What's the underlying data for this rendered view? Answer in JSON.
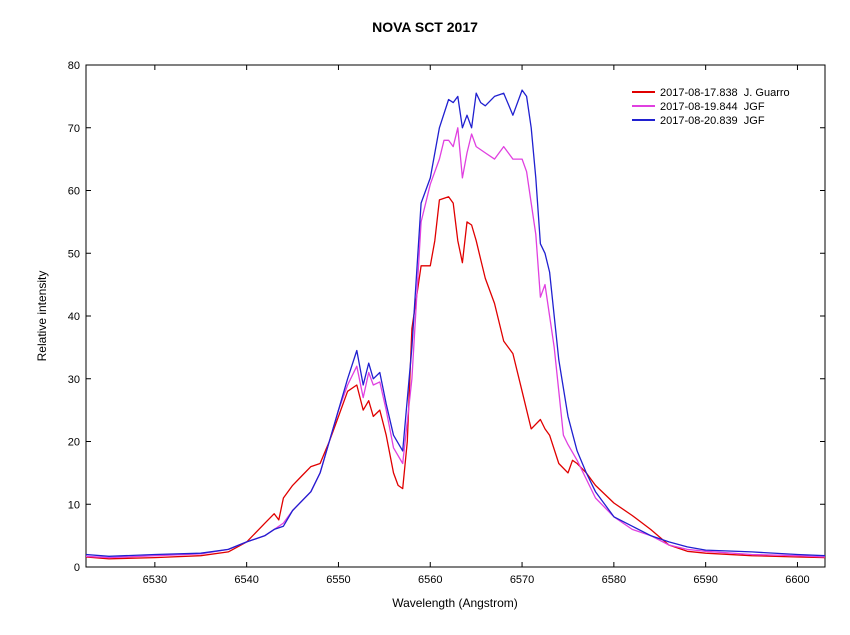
{
  "chart_data": {
    "type": "line",
    "title": "NOVA SCT 2017",
    "xlabel": "Wavelength (Angstrom)",
    "ylabel": "Relative intensity",
    "xlim": [
      6522.5,
      6603
    ],
    "ylim": [
      0,
      80
    ],
    "x_ticks": [
      6530,
      6540,
      6550,
      6560,
      6570,
      6580,
      6590,
      6600
    ],
    "y_ticks": [
      0,
      10,
      20,
      30,
      40,
      50,
      60,
      70,
      80
    ],
    "grid": false,
    "legend_position": "top-right",
    "series": [
      {
        "name": "2017-08-17.838  J. Guarro",
        "color": "#e00000",
        "x": [
          6522.5,
          6525,
          6530,
          6535,
          6538,
          6540,
          6542,
          6543,
          6543.5,
          6544,
          6545,
          6546,
          6547,
          6548,
          6549,
          6550,
          6551,
          6552,
          6552.7,
          6553.3,
          6553.8,
          6554.5,
          6555.2,
          6556,
          6556.5,
          6557,
          6557.5,
          6558,
          6559,
          6560,
          6560.5,
          6561,
          6562,
          6562.5,
          6563,
          6563.5,
          6564,
          6564.5,
          6565,
          6565.5,
          6566,
          6567,
          6568,
          6569,
          6570,
          6571,
          6572,
          6572.5,
          6573,
          6574,
          6575,
          6575.5,
          6576,
          6577,
          6578,
          6580,
          6582,
          6584,
          6586,
          6588,
          6590,
          6595,
          6600,
          6603
        ],
        "y": [
          1.6,
          1.3,
          1.5,
          1.8,
          2.4,
          4,
          7,
          8.5,
          7.5,
          11,
          13,
          14.5,
          16,
          16.5,
          20,
          24,
          28,
          29,
          25,
          26.5,
          24,
          25,
          21,
          15,
          13,
          12.5,
          20,
          38,
          48,
          48,
          52,
          58.5,
          59,
          58,
          52,
          48.5,
          55,
          54.5,
          52,
          49,
          46,
          42,
          36,
          34,
          28,
          22,
          23.5,
          22,
          21,
          16.5,
          15,
          17,
          16.5,
          15,
          13,
          10.2,
          8.2,
          6,
          3.5,
          2.5,
          2.2,
          1.8,
          1.6,
          1.5
        ]
      },
      {
        "name": "2017-08-19.844  JGF",
        "color": "#e040e0",
        "x": [
          6522.5,
          6525,
          6530,
          6535,
          6538,
          6540,
          6542,
          6543,
          6544,
          6545,
          6547,
          6548,
          6549,
          6550,
          6551,
          6552,
          6552.7,
          6553.3,
          6553.8,
          6554.5,
          6555.2,
          6556,
          6557,
          6558,
          6559,
          6560,
          6561,
          6561.5,
          6562,
          6562.5,
          6563,
          6563.5,
          6564,
          6564.5,
          6565,
          6566,
          6567,
          6568,
          6569,
          6570,
          6570.5,
          6571,
          6571.5,
          6572,
          6572.5,
          6573,
          6573.5,
          6574,
          6574.5,
          6575,
          6576,
          6577,
          6578,
          6580,
          6582,
          6584,
          6586,
          6588,
          6590,
          6595,
          6600,
          6603
        ],
        "y": [
          1.7,
          1.5,
          1.8,
          2.1,
          2.8,
          4,
          5,
          6,
          7,
          9,
          12,
          15,
          20,
          25,
          29,
          32,
          27,
          31,
          29,
          29.5,
          25,
          19,
          16.5,
          30,
          55,
          61,
          65,
          68,
          68,
          67,
          70,
          62,
          66,
          69,
          67,
          66,
          65,
          67,
          65,
          65,
          63,
          58,
          53,
          43,
          45,
          40,
          35,
          28,
          21,
          19.5,
          17,
          14,
          11,
          8,
          6,
          5,
          3.5,
          2.8,
          2.5,
          2,
          1.8,
          1.6
        ]
      },
      {
        "name": "2017-08-20.839  JGF",
        "color": "#2020d0",
        "x": [
          6522.5,
          6525,
          6530,
          6535,
          6538,
          6540,
          6542,
          6543,
          6544,
          6545,
          6547,
          6548,
          6549,
          6550,
          6551,
          6552,
          6552.7,
          6553.3,
          6553.8,
          6554.5,
          6555.2,
          6556,
          6557,
          6558,
          6559,
          6560,
          6561,
          6562,
          6562.5,
          6563,
          6563.5,
          6564,
          6564.5,
          6565,
          6565.5,
          6566,
          6567,
          6568,
          6569,
          6570,
          6570.5,
          6571,
          6571.5,
          6572,
          6572.5,
          6573,
          6574,
          6575,
          6576,
          6577,
          6578,
          6580,
          6582,
          6584,
          6586,
          6588,
          6590,
          6595,
          6600,
          6603
        ],
        "y": [
          2,
          1.7,
          2,
          2.2,
          2.8,
          4,
          5,
          6,
          6.5,
          9,
          12,
          15,
          20,
          25,
          30,
          34.5,
          29,
          32.5,
          30,
          31,
          26,
          21,
          18.5,
          35,
          58,
          62,
          70,
          74.5,
          74,
          75,
          70,
          72,
          70,
          75.5,
          74,
          73.5,
          75,
          75.5,
          72,
          76,
          75,
          70,
          62,
          51.5,
          50,
          47,
          33,
          24,
          18.5,
          15,
          12,
          8,
          6.5,
          5,
          4,
          3.2,
          2.7,
          2.4,
          2,
          1.8
        ]
      }
    ]
  }
}
